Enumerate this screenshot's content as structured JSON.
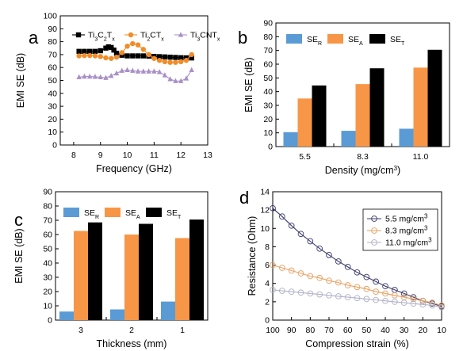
{
  "charts": [
    {
      "panel_label": "a",
      "type": "line",
      "xlabel": "Frequency (GHz)",
      "ylabel": "EMI SE (dB)",
      "xlim": [
        7.5,
        13.0
      ],
      "ylim": [
        0,
        100
      ],
      "xticks": [
        "8",
        "9",
        "10",
        "11",
        "12",
        "13"
      ],
      "yticks": [
        "0",
        "10",
        "20",
        "30",
        "40",
        "50",
        "60",
        "70",
        "80",
        "90",
        "100"
      ],
      "legend_position": "top-center",
      "series": [
        {
          "name": "Ti3C2Tx",
          "label_parts": [
            [
              "Ti",
              ""
            ],
            [
              "3",
              "s"
            ],
            [
              "C",
              ""
            ],
            [
              "2",
              "s"
            ],
            [
              "T",
              ""
            ],
            [
              "x",
              "s"
            ]
          ],
          "color": "#000000",
          "marker": "square",
          "x": [
            8.2,
            8.4,
            8.6,
            8.8,
            9.0,
            9.2,
            9.3,
            9.4,
            9.5,
            9.6,
            9.8,
            10.0,
            10.2,
            10.4,
            10.6,
            10.8,
            11.0,
            11.2,
            11.4,
            11.6,
            11.8,
            12.0,
            12.2,
            12.4
          ],
          "y": [
            72.5,
            72.5,
            72.5,
            72.5,
            73.0,
            75.0,
            76.0,
            75.5,
            73.5,
            71.0,
            69.5,
            69.0,
            69.0,
            69.0,
            69.0,
            68.8,
            68.6,
            68.4,
            68.2,
            68.0,
            67.8,
            67.6,
            67.5,
            67.4
          ]
        },
        {
          "name": "Ti2CTx",
          "label_parts": [
            [
              "Ti",
              ""
            ],
            [
              "2",
              "s"
            ],
            [
              "CT",
              ""
            ],
            [
              "x",
              "s"
            ]
          ],
          "color": "#f28c28",
          "marker": "circle",
          "x": [
            8.2,
            8.4,
            8.6,
            8.8,
            9.0,
            9.2,
            9.4,
            9.6,
            9.8,
            10.0,
            10.2,
            10.4,
            10.6,
            10.8,
            11.0,
            11.2,
            11.4,
            11.6,
            11.8,
            12.0,
            12.2,
            12.4
          ],
          "y": [
            69.0,
            69.2,
            69.3,
            69.0,
            68.5,
            67.5,
            67.0,
            68.0,
            71.5,
            76.5,
            78.5,
            77.5,
            74.0,
            70.0,
            67.0,
            65.5,
            64.5,
            64.0,
            64.0,
            64.5,
            65.5,
            70.0
          ]
        },
        {
          "name": "Ti3CNTx",
          "label_parts": [
            [
              "Ti",
              ""
            ],
            [
              "3",
              "s"
            ],
            [
              "CNT",
              ""
            ],
            [
              "x",
              "s"
            ]
          ],
          "color": "#a990c8",
          "marker": "triangle",
          "x": [
            8.2,
            8.4,
            8.6,
            8.8,
            9.0,
            9.2,
            9.4,
            9.6,
            9.8,
            10.0,
            10.2,
            10.4,
            10.6,
            10.8,
            11.0,
            11.2,
            11.4,
            11.6,
            11.8,
            12.0,
            12.2,
            12.4
          ],
          "y": [
            52.5,
            53.0,
            53.0,
            52.8,
            52.5,
            52.0,
            53.5,
            55.5,
            57.5,
            58.0,
            57.5,
            57.0,
            57.0,
            57.0,
            57.0,
            56.5,
            54.0,
            51.0,
            49.5,
            49.5,
            51.5,
            58.0
          ]
        }
      ]
    },
    {
      "panel_label": "b",
      "type": "bar",
      "xlabel_parts": [
        [
          "Density (mg/cm",
          ""
        ],
        [
          "3",
          "p"
        ],
        [
          ")",
          ""
        ]
      ],
      "ylabel": "EMI SE (dB)",
      "categories": [
        "5.5",
        "8.3",
        "11.0"
      ],
      "ylim": [
        0,
        90
      ],
      "yticks": [
        "0",
        "10",
        "20",
        "30",
        "40",
        "50",
        "60",
        "70",
        "80",
        "90"
      ],
      "legend_position": "top",
      "series": [
        {
          "name": "SER",
          "label_parts": [
            [
              "SE",
              ""
            ],
            [
              "R",
              "s"
            ]
          ],
          "color": "#5b9bd5",
          "values": [
            10.5,
            11.5,
            13.0
          ]
        },
        {
          "name": "SEA",
          "label_parts": [
            [
              "SE",
              ""
            ],
            [
              "A",
              "s"
            ]
          ],
          "color": "#f79646",
          "values": [
            35.0,
            45.5,
            57.5
          ]
        },
        {
          "name": "SET",
          "label_parts": [
            [
              "SE",
              ""
            ],
            [
              "T",
              "s"
            ]
          ],
          "color": "#000000",
          "values": [
            44.5,
            57.0,
            70.5
          ]
        }
      ]
    },
    {
      "panel_label": "c",
      "type": "bar",
      "xlabel": "Thickness (mm)",
      "ylabel": "EMI SE (dB)",
      "categories": [
        "3",
        "2",
        "1"
      ],
      "ylim": [
        0,
        90
      ],
      "yticks": [
        "0",
        "10",
        "20",
        "30",
        "40",
        "50",
        "60",
        "70",
        "80",
        "90"
      ],
      "legend_position": "top",
      "series": [
        {
          "name": "SER",
          "label_parts": [
            [
              "SE",
              ""
            ],
            [
              "R",
              "s"
            ]
          ],
          "color": "#5b9bd5",
          "values": [
            6.0,
            7.5,
            13.0
          ]
        },
        {
          "name": "SEA",
          "label_parts": [
            [
              "SE",
              ""
            ],
            [
              "A",
              "s"
            ]
          ],
          "color": "#f79646",
          "values": [
            62.5,
            60.0,
            57.5
          ]
        },
        {
          "name": "SET",
          "label_parts": [
            [
              "SE",
              ""
            ],
            [
              "T",
              "s"
            ]
          ],
          "color": "#000000",
          "values": [
            68.5,
            67.5,
            70.5
          ]
        }
      ]
    },
    {
      "panel_label": "d",
      "type": "line",
      "xlabel": "Compression strain (%)",
      "ylabel": "Resistance (Ohm)",
      "xlim": [
        100,
        10
      ],
      "ylim": [
        0,
        14
      ],
      "xticks": [
        "100",
        "90",
        "80",
        "70",
        "60",
        "50",
        "40",
        "30",
        "20",
        "10"
      ],
      "yticks": [
        "0",
        "2",
        "4",
        "6",
        "8",
        "10",
        "12",
        "14"
      ],
      "legend_position": "top-right",
      "series": [
        {
          "name": "5.5 mg/cm3",
          "label_parts": [
            [
              "5.5 mg/cm",
              ""
            ],
            [
              "3",
              "p"
            ]
          ],
          "color": "#3c3c6e",
          "marker": "open-circle",
          "x": [
            100,
            95,
            90,
            85,
            80,
            75,
            70,
            65,
            60,
            55,
            50,
            45,
            40,
            35,
            30,
            25,
            20,
            15,
            10
          ],
          "y": [
            12.2,
            11.3,
            10.3,
            9.4,
            8.6,
            7.8,
            7.1,
            6.4,
            5.8,
            5.2,
            4.7,
            4.2,
            3.7,
            3.3,
            2.9,
            2.5,
            2.1,
            1.8,
            1.5
          ]
        },
        {
          "name": "8.3 mg/cm3",
          "label_parts": [
            [
              "8.3 mg/cm",
              ""
            ],
            [
              "3",
              "p"
            ]
          ],
          "color": "#e8a060",
          "marker": "open-circle",
          "x": [
            100,
            95,
            90,
            85,
            80,
            75,
            70,
            65,
            60,
            55,
            50,
            45,
            40,
            35,
            30,
            25,
            20,
            15,
            10
          ],
          "y": [
            6.0,
            5.7,
            5.4,
            5.1,
            4.8,
            4.6,
            4.3,
            4.1,
            3.8,
            3.6,
            3.4,
            3.1,
            2.9,
            2.7,
            2.5,
            2.3,
            2.1,
            1.9,
            1.6
          ]
        },
        {
          "name": "11.0 mg/cm3",
          "label_parts": [
            [
              "11.0 mg/cm",
              ""
            ],
            [
              "3",
              "p"
            ]
          ],
          "color": "#b0b0c8",
          "marker": "open-circle",
          "x": [
            100,
            95,
            90,
            85,
            80,
            75,
            70,
            65,
            60,
            55,
            50,
            45,
            40,
            35,
            30,
            25,
            20,
            15,
            10
          ],
          "y": [
            3.3,
            3.2,
            3.1,
            3.0,
            2.9,
            2.8,
            2.7,
            2.6,
            2.5,
            2.4,
            2.3,
            2.2,
            2.1,
            2.0,
            1.9,
            1.8,
            1.7,
            1.6,
            1.4
          ]
        }
      ]
    }
  ]
}
